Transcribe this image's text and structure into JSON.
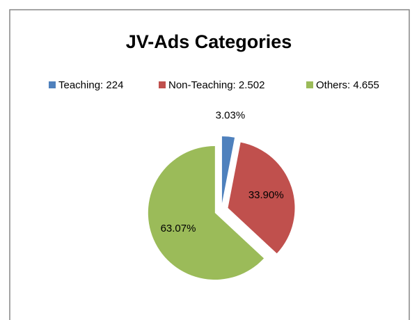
{
  "chart_data": {
    "type": "pie",
    "title": "JV-Ads Categories",
    "series": [
      {
        "name": "Teaching: 224",
        "color": "#4f81bd"
      },
      {
        "name": "Non-Teaching: 2.502",
        "color": "#c0504d"
      },
      {
        "name": "Others: 4.655",
        "color": "#9bbb59"
      }
    ],
    "values": [
      3.03,
      33.9,
      63.07
    ],
    "value_labels": [
      "3.03%",
      "33.90%",
      "63.07%"
    ],
    "legend": "top"
  }
}
